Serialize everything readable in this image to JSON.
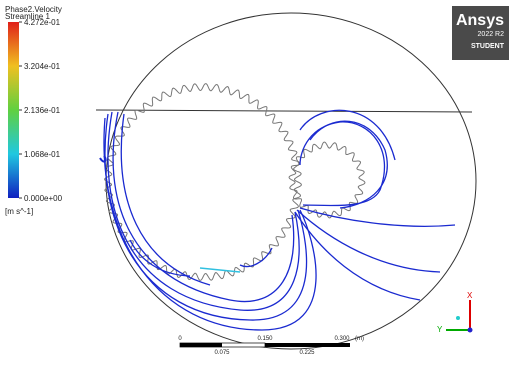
{
  "legend": {
    "title": "Phase2.Velocity",
    "subtitle": "Streamline 1",
    "labels": [
      "4.272e-01",
      "3.204e-01",
      "2.136e-01",
      "1.068e-01",
      "0.000e+00"
    ],
    "unit": "[m s^-1]"
  },
  "logo": {
    "brand": "Ansys",
    "version": "2022 R2",
    "edition": "STUDENT"
  },
  "scale_bar": {
    "top_labels": [
      "0",
      "0.150",
      "0.300"
    ],
    "unit": "(m)",
    "bottom_labels": [
      "0.075",
      "0.225"
    ]
  },
  "triad": {
    "x": "X",
    "y": "Y"
  }
}
